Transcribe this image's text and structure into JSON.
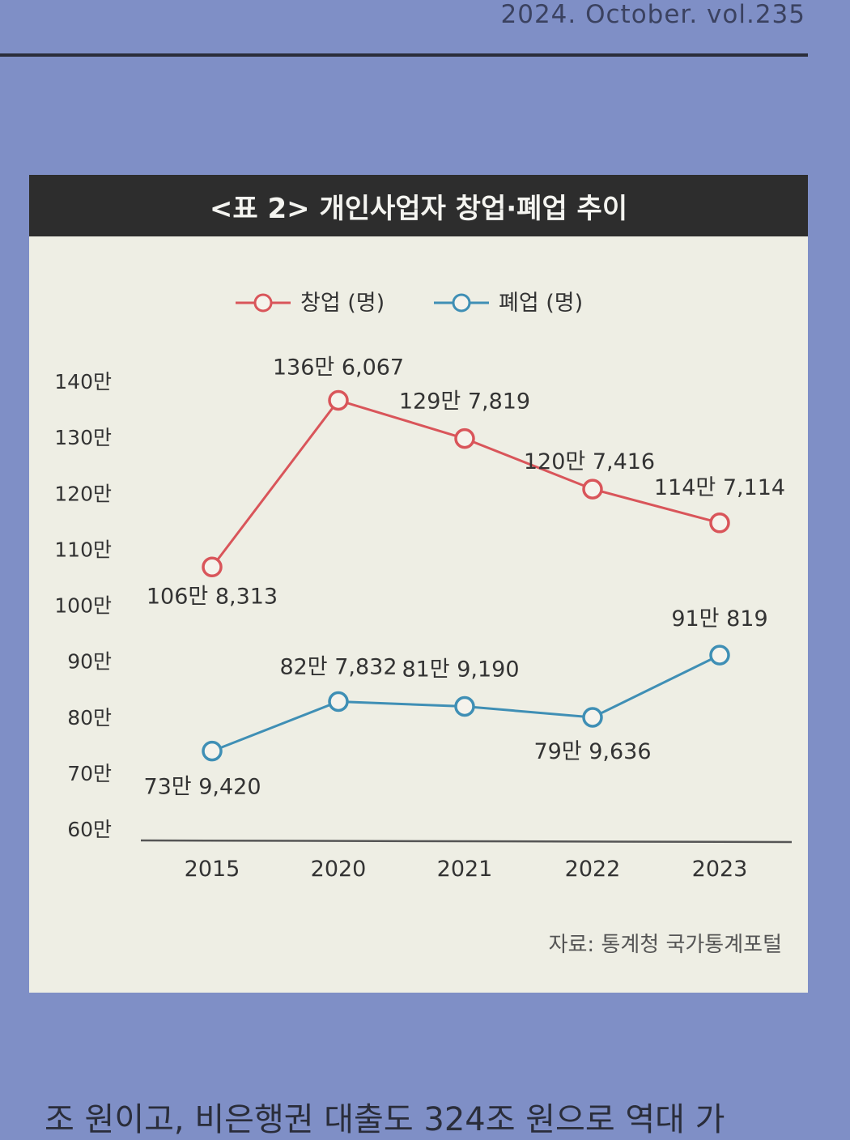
{
  "page": {
    "header": "2024. October. vol.235",
    "bottom_text": "조 원이고, 비은행권 대출도 324조 원으로 역대 가"
  },
  "chart_data": {
    "type": "line",
    "title": "<표 2> 개인사업자 창업·폐업 추이",
    "categories": [
      "2015",
      "2020",
      "2021",
      "2022",
      "2023"
    ],
    "yticks": [
      "140만",
      "130만",
      "120만",
      "110만",
      "100만",
      "90만",
      "80만",
      "70만",
      "60만"
    ],
    "ylim": [
      600000,
      1400000
    ],
    "legend_position": "top-center",
    "series": [
      {
        "name": "창업 (명)",
        "color": "#d9555a",
        "values": [
          1068313,
          1366067,
          1297819,
          1207416,
          1147114
        ],
        "labels": [
          "106만 8,313",
          "136만 6,067",
          "129만 7,819",
          "120만 7,416",
          "114만 7,114"
        ]
      },
      {
        "name": "폐업 (명)",
        "color": "#3f8fb5",
        "values": [
          739420,
          827832,
          819190,
          799636,
          910819
        ],
        "labels": [
          "73만 9,420",
          "82만 7,832",
          "81만 9,190",
          "79만 9,636",
          "91만 819"
        ]
      }
    ],
    "source": "자료: 통계청 국가통계포털"
  }
}
